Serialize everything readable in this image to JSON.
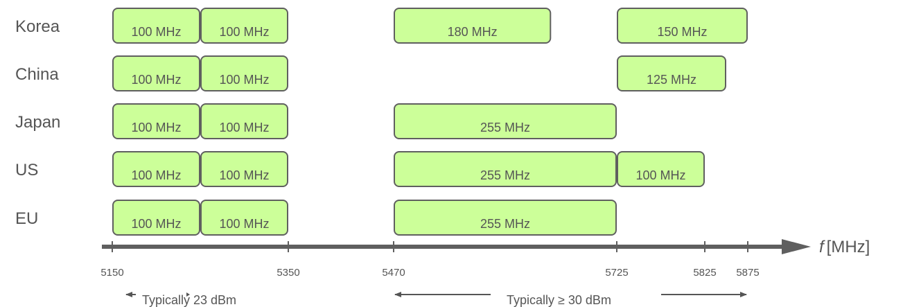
{
  "axis": {
    "symbol": "f",
    "unit": "[MHz]",
    "ticks": [
      5150,
      5350,
      5470,
      5725,
      5825,
      5875
    ],
    "colors": {
      "axis": "#5f5f5f",
      "text": "#555555"
    }
  },
  "band_style": {
    "fill": "#ccff99",
    "stroke": "#5f5f5f"
  },
  "regions": [
    {
      "name": "Korea",
      "bands": [
        {
          "start": 5150,
          "end": 5250,
          "label": "100 MHz"
        },
        {
          "start": 5250,
          "end": 5350,
          "label": "100 MHz"
        },
        {
          "start": 5470,
          "end": 5650,
          "label": "180 MHz"
        },
        {
          "start": 5725,
          "end": 5875,
          "label": "150 MHz"
        }
      ]
    },
    {
      "name": "China",
      "bands": [
        {
          "start": 5150,
          "end": 5250,
          "label": "100 MHz"
        },
        {
          "start": 5250,
          "end": 5350,
          "label": "100 MHz"
        },
        {
          "start": 5725,
          "end": 5850,
          "label": "125 MHz"
        }
      ]
    },
    {
      "name": "Japan",
      "bands": [
        {
          "start": 5150,
          "end": 5250,
          "label": "100 MHz"
        },
        {
          "start": 5250,
          "end": 5350,
          "label": "100 MHz"
        },
        {
          "start": 5470,
          "end": 5725,
          "label": "255 MHz"
        }
      ]
    },
    {
      "name": "US",
      "bands": [
        {
          "start": 5150,
          "end": 5250,
          "label": "100 MHz"
        },
        {
          "start": 5250,
          "end": 5350,
          "label": "100 MHz"
        },
        {
          "start": 5470,
          "end": 5725,
          "label": "255 MHz"
        },
        {
          "start": 5725,
          "end": 5825,
          "label": "100 MHz"
        }
      ]
    },
    {
      "name": "EU",
      "bands": [
        {
          "start": 5150,
          "end": 5250,
          "label": "100 MHz"
        },
        {
          "start": 5250,
          "end": 5350,
          "label": "100 MHz"
        },
        {
          "start": 5470,
          "end": 5725,
          "label": "255 MHz"
        }
      ]
    }
  ],
  "power_ranges": [
    {
      "start": 5150,
      "end": 5350,
      "label": "Typically 23 dBm"
    },
    {
      "start": 5470,
      "end": 5875,
      "label": "Typically ≥ 30 dBm"
    }
  ]
}
